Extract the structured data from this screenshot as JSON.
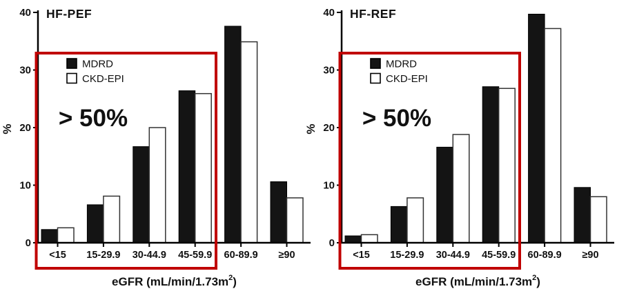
{
  "figure": {
    "background": "#ffffff",
    "accent_red": "#c00000",
    "bar_fill_mdrd": "#141414",
    "bar_fill_ckdepi": "#ffffff",
    "bar_stroke": "#222222"
  },
  "chart_data": [
    {
      "type": "bar",
      "title": "HF-PEF",
      "ylabel": "%",
      "xlabel_prefix": "eGFR (mL/min/1.73m",
      "xlabel_sup": "2",
      "xlabel_suffix": ")",
      "ylim": [
        0,
        40
      ],
      "yticks": [
        0,
        10,
        20,
        30,
        40
      ],
      "grid": false,
      "legend_position": "upper-left-inside",
      "categories": [
        "<15",
        "15-29.9",
        "30-44.9",
        "45-59.9",
        "60-89.9",
        "≥90"
      ],
      "series": [
        {
          "name": "MDRD",
          "values": [
            2.3,
            6.6,
            16.7,
            26.4,
            37.6,
            10.6
          ]
        },
        {
          "name": "CKD-EPI",
          "values": [
            2.6,
            8.1,
            20.0,
            25.9,
            34.9,
            7.8
          ]
        }
      ],
      "annotation": "> 50%",
      "annotation_color": "#c00000",
      "highlight_box_categories": [
        "<15",
        "15-29.9",
        "30-44.9",
        "45-59.9"
      ]
    },
    {
      "type": "bar",
      "title": "HF-REF",
      "ylabel": "%",
      "xlabel_prefix": "eGFR (mL/min/1.73m",
      "xlabel_sup": "2",
      "xlabel_suffix": ")",
      "ylim": [
        0,
        40
      ],
      "yticks": [
        0,
        10,
        20,
        30,
        40
      ],
      "grid": false,
      "legend_position": "upper-left-inside",
      "categories": [
        "<15",
        "15-29.9",
        "30-44.9",
        "45-59.9",
        "60-89.9",
        "≥90"
      ],
      "series": [
        {
          "name": "MDRD",
          "values": [
            1.2,
            6.3,
            16.6,
            27.1,
            39.7,
            9.6
          ]
        },
        {
          "name": "CKD-EPI",
          "values": [
            1.4,
            7.8,
            18.8,
            26.8,
            37.2,
            8.0
          ]
        }
      ],
      "annotation": "> 50%",
      "annotation_color": "#c00000",
      "highlight_box_categories": [
        "<15",
        "15-29.9",
        "30-44.9",
        "45-59.9"
      ]
    }
  ]
}
